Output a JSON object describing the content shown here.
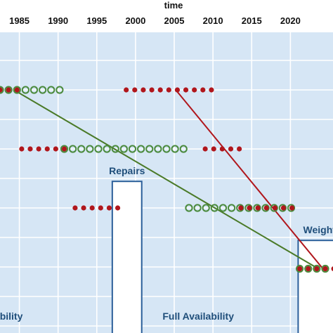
{
  "chart_data": {
    "type": "scatter",
    "title": "",
    "xlabel": "time",
    "ylabel": "",
    "x_axis_position": "top",
    "grid": true,
    "xlim": [
      1982.5,
      2025.5
    ],
    "x_ticks": [
      1985,
      1990,
      1995,
      2000,
      2005,
      2010,
      2015,
      2020
    ],
    "x_tick_labels": [
      "1985",
      "1990",
      "1995",
      "2000",
      "2005",
      "2010",
      "2015",
      "2020"
    ],
    "rows": [
      {
        "row": 1,
        "solid": [
          1982.5,
          1983.6,
          1984.7
        ],
        "hollow": [
          1982.5,
          1983.6,
          1984.7,
          1985.8,
          1986.9,
          1988.0,
          1989.1,
          1990.2
        ]
      },
      {
        "row": 1,
        "solid": [
          1998.8,
          1999.9,
          2001.0,
          2002.1,
          2003.2,
          2004.3,
          2005.4,
          2006.5,
          2007.6,
          2008.7,
          2009.8
        ],
        "hollow": []
      },
      {
        "row": 2,
        "solid": [
          1985.3,
          1986.4,
          1987.5,
          1988.6,
          1989.7,
          1990.8
        ],
        "hollow": [
          1990.8,
          1991.9,
          1993.0,
          1994.1,
          1995.2,
          1996.3,
          1997.4,
          1998.5,
          1999.6,
          2000.7,
          2001.8,
          2002.9,
          2004.0,
          2005.1,
          2006.2
        ]
      },
      {
        "row": 2,
        "solid": [
          2009.0,
          2010.1,
          2011.2,
          2012.3,
          2013.4
        ],
        "hollow": []
      },
      {
        "row": 3,
        "solid": [
          1992.2,
          1993.3,
          1994.4,
          1995.5,
          1996.6,
          1997.7
        ],
        "hollow": []
      },
      {
        "row": 3,
        "solid": [
          2013.6,
          2014.7,
          2015.8,
          2016.9,
          2018.0,
          2019.1,
          2020.2
        ],
        "hollow": [
          2006.9,
          2008.0,
          2009.1,
          2010.2,
          2011.3,
          2012.4,
          2013.5,
          2014.6,
          2015.7,
          2016.8,
          2017.9,
          2019.0,
          2020.1
        ]
      },
      {
        "row": 4.03,
        "solid": [
          2021.2,
          2022.3,
          2023.4,
          2024.5,
          2025.6
        ],
        "hollow": [
          2021.2,
          2022.3,
          2023.4,
          2024.5
        ]
      }
    ],
    "trend_lines": [
      {
        "color": "#4a7a28",
        "from": [
          1984.3,
          1
        ],
        "to": [
          2023.6,
          4.03
        ]
      },
      {
        "color": "#b0161c",
        "from": [
          2005.2,
          1
        ],
        "to": [
          2024.2,
          4.03
        ]
      }
    ],
    "annotation_boxes": [
      {
        "label": "Repairs",
        "x_range": [
          1997.0,
          2000.8
        ],
        "top_row": 2.55
      },
      {
        "label": "Weight",
        "x_range": [
          2021.0,
          2026.5
        ],
        "top_row": 3.55
      }
    ],
    "bottom_labels": [
      {
        "label": "ability",
        "x": 1983.6
      },
      {
        "label": "Full Availability",
        "x": 2008.1
      }
    ],
    "colors": {
      "plot_background": "#d6e6f5",
      "grid": "#ffffff",
      "solid_marker": "#b0161c",
      "hollow_marker": "#4a8a3c",
      "box_stroke": "#2b5f9a",
      "box_label": "#1f4e7a"
    }
  }
}
